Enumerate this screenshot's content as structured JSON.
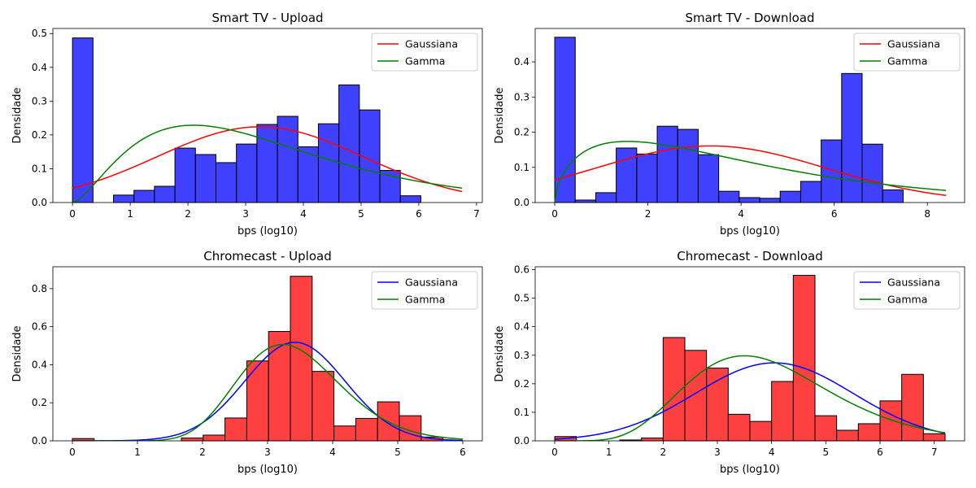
{
  "chart_data": [
    {
      "type": "bar",
      "title": "Smart TV - Upload",
      "xlabel": "bps (log10)",
      "ylabel": "Densidade",
      "xlim": [
        -0.34,
        7.1
      ],
      "ylim": [
        0,
        0.515
      ],
      "xticks": [
        0,
        1,
        2,
        3,
        4,
        5,
        6,
        7
      ],
      "yticks": [
        0.0,
        0.1,
        0.2,
        0.3,
        0.4,
        0.5
      ],
      "ytick_labels": [
        "0.0",
        "0.1",
        "0.2",
        "0.3",
        "0.4",
        "0.5"
      ],
      "bar_color": "#0000ff",
      "bins": {
        "start": 0,
        "width": 0.355
      },
      "values": [
        0.487,
        0,
        0.022,
        0.036,
        0.048,
        0.161,
        0.142,
        0.118,
        0.173,
        0.231,
        0.255,
        0.165,
        0.233,
        0.348,
        0.274,
        0.095,
        0.02,
        0,
        0,
        0
      ],
      "curves": [
        {
          "name": "Gaussiana",
          "kind": "normal",
          "mu": 3.25,
          "sigma": 1.78,
          "color": "#ff0000",
          "x_range": [
            0,
            6.75
          ]
        },
        {
          "name": "Gamma",
          "kind": "gamma",
          "k": 2.6,
          "theta": 1.31,
          "color": "#008000",
          "x_range": [
            0,
            6.75
          ]
        }
      ],
      "legend": "top-right"
    },
    {
      "type": "bar",
      "title": "Smart TV - Download",
      "xlabel": "bps (log10)",
      "ylabel": "Densidade",
      "xlim": [
        -0.42,
        8.8
      ],
      "ylim": [
        0,
        0.495
      ],
      "xticks": [
        0,
        2,
        4,
        6,
        8
      ],
      "yticks": [
        0.0,
        0.1,
        0.2,
        0.3,
        0.4
      ],
      "ytick_labels": [
        "0.0",
        "0.1",
        "0.2",
        "0.3",
        "0.4"
      ],
      "bar_color": "#0000ff",
      "bins": {
        "start": 0,
        "width": 0.44
      },
      "values": [
        0.47,
        0.007,
        0.028,
        0.155,
        0.138,
        0.217,
        0.208,
        0.136,
        0.032,
        0.014,
        0.012,
        0.032,
        0.06,
        0.178,
        0.367,
        0.166,
        0.036,
        0,
        0,
        0
      ],
      "curves": [
        {
          "name": "Gaussiana",
          "kind": "normal",
          "mu": 3.35,
          "sigma": 2.48,
          "color": "#ff0000",
          "x_range": [
            0,
            8.4
          ]
        },
        {
          "name": "Gamma",
          "kind": "gamma",
          "k": 1.6,
          "theta": 2.6,
          "color": "#008000",
          "x_range": [
            0,
            8.4
          ]
        }
      ],
      "legend": "top-right"
    },
    {
      "type": "bar",
      "title": "Chromecast - Upload",
      "xlabel": "bps (log10)",
      "ylabel": "Densidade",
      "xlim": [
        -0.3,
        6.3
      ],
      "ylim": [
        0,
        0.915
      ],
      "xticks": [
        0,
        1,
        2,
        3,
        4,
        5,
        6
      ],
      "yticks": [
        0.0,
        0.2,
        0.4,
        0.6,
        0.8
      ],
      "ytick_labels": [
        "0.0",
        "0.2",
        "0.4",
        "0.6",
        "0.8"
      ],
      "bar_color": "#ff0000",
      "bins": {
        "start": 0,
        "width": 0.335
      },
      "values": [
        0.012,
        0,
        0,
        0,
        0,
        0.015,
        0.03,
        0.12,
        0.42,
        0.575,
        0.865,
        0.365,
        0.078,
        0.118,
        0.205,
        0.132,
        0.02,
        0,
        0,
        0
      ],
      "curves": [
        {
          "name": "Gaussiana",
          "kind": "normal",
          "mu": 3.42,
          "sigma": 0.77,
          "color": "#0000ff",
          "x_range": [
            0,
            6
          ]
        },
        {
          "name": "Gamma",
          "kind": "gamma",
          "k": 18.0,
          "theta": 0.19,
          "color": "#008000",
          "x_range": [
            0,
            6
          ]
        }
      ],
      "legend": "top-right"
    },
    {
      "type": "bar",
      "title": "Chromecast - Download",
      "xlabel": "bps (log10)",
      "ylabel": "Densidade",
      "xlim": [
        -0.36,
        7.56
      ],
      "ylim": [
        0,
        0.61
      ],
      "xticks": [
        0,
        1,
        2,
        3,
        4,
        5,
        6,
        7
      ],
      "yticks": [
        0.0,
        0.1,
        0.2,
        0.3,
        0.4,
        0.5,
        0.6
      ],
      "ytick_labels": [
        "0.0",
        "0.1",
        "0.2",
        "0.3",
        "0.4",
        "0.5",
        "0.6"
      ],
      "bar_color": "#ff0000",
      "bins": {
        "start": 0,
        "width": 0.4
      },
      "values": [
        0.015,
        0,
        0,
        0.003,
        0.01,
        0.362,
        0.317,
        0.255,
        0.093,
        0.068,
        0.208,
        0.58,
        0.088,
        0.037,
        0.06,
        0.14,
        0.233,
        0.025,
        0,
        0
      ],
      "curves": [
        {
          "name": "Gaussiana",
          "kind": "normal",
          "mu": 4.05,
          "sigma": 1.46,
          "color": "#0000ff",
          "x_range": [
            0,
            7.2
          ]
        },
        {
          "name": "Gamma",
          "kind": "gamma",
          "k": 8.0,
          "theta": 0.5,
          "color": "#008000",
          "x_range": [
            0,
            7.2
          ]
        }
      ],
      "legend": "top-right"
    }
  ]
}
